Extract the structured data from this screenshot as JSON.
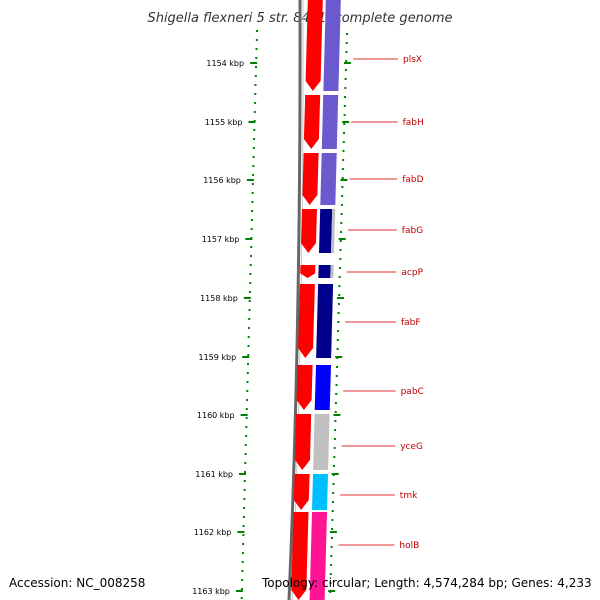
{
  "title": "Shigella flexneri 5 str. 8401, complete genome",
  "footer": {
    "accession": "Accession: NC_008258",
    "topology": "Topology: circular; Length: 4,574,284 bp; Genes: 4,233"
  },
  "colors": {
    "tick": "#008000",
    "gene_label": "#c00000",
    "backbone": "#888888",
    "cds_forward": "#ff0000",
    "leader_line": "#e03030"
  },
  "scale_labels": [
    "1154 kbp",
    "1155 kbp",
    "1156 kbp",
    "1157 kbp",
    "1158 kbp",
    "1159 kbp",
    "1160 kbp",
    "1161 kbp",
    "1162 kbp",
    "1163 kbp"
  ],
  "genes": [
    {
      "name": "plsX",
      "color": "#6a5acd"
    },
    {
      "name": "fabH",
      "color": "#6a5acd"
    },
    {
      "name": "fabD",
      "color": "#6a5acd"
    },
    {
      "name": "fabG",
      "color": "#00008b"
    },
    {
      "name": "acpP",
      "color": "#00008b"
    },
    {
      "name": "fabF",
      "color": "#00008b"
    },
    {
      "name": "pabC",
      "color": "#0000ff"
    },
    {
      "name": "yceG",
      "color": "#c0c0c0"
    },
    {
      "name": "tmk",
      "color": "#00bfff"
    },
    {
      "name": "holB",
      "color": "#ff1493"
    }
  ]
}
